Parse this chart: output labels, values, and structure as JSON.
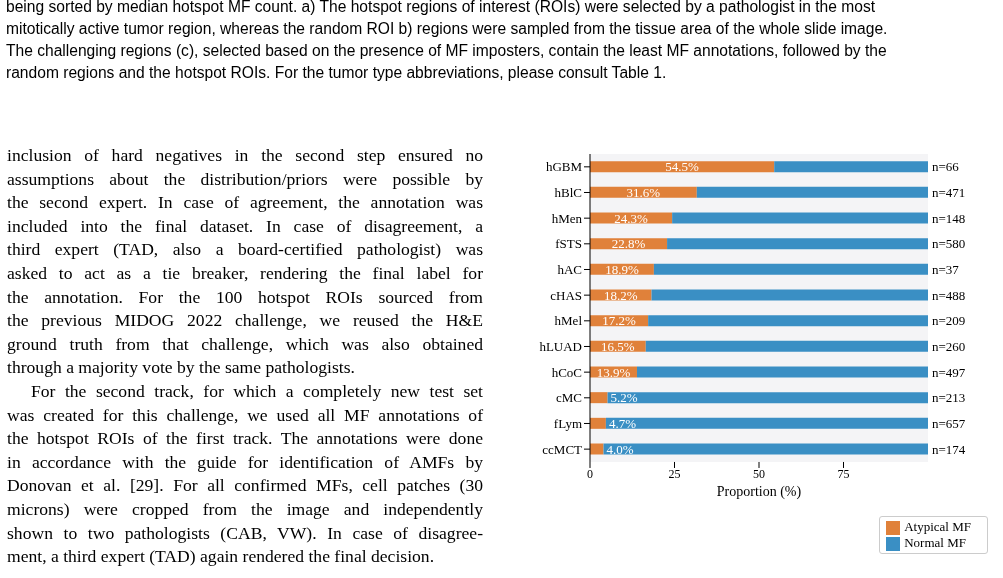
{
  "chart_data": {
    "type": "bar",
    "orientation": "horizontal",
    "stacked": true,
    "categories": [
      "hGBM",
      "hBlC",
      "hMen",
      "fSTS",
      "hAC",
      "cHAS",
      "hMel",
      "hLUAD",
      "hCoC",
      "cMC",
      "fLym",
      "ccMCT"
    ],
    "series": [
      {
        "name": "Atypical MF",
        "color": "#e0813a",
        "values": [
          54.5,
          31.6,
          24.3,
          22.8,
          18.9,
          18.2,
          17.2,
          16.5,
          13.9,
          5.2,
          4.7,
          4.0
        ],
        "value_labels": [
          "54.5%",
          "31.6%",
          "24.3%",
          "22.8%",
          "18.9%",
          "18.2%",
          "17.2%",
          "16.5%",
          "13.9%",
          "5.2%",
          "4.7%",
          "4.0%"
        ]
      },
      {
        "name": "Normal MF",
        "color": "#3a8fc4",
        "values": [
          45.5,
          68.4,
          75.7,
          77.2,
          81.1,
          81.8,
          82.8,
          83.5,
          86.1,
          94.8,
          95.3,
          96.0
        ]
      }
    ],
    "xlim": [
      0,
      100
    ],
    "xticks": [
      0,
      25,
      50,
      75
    ],
    "xlabel": "Proportion (%)",
    "legend": "bottom right",
    "annotations": [
      "being sorted by median hotspot MF count. a) The hotspot regions of interest (ROIs) were selected by a pathologist in the most\nmitotically active tumor region, whereas the random ROI b) regions were sampled from the tissue area of the whole slide image.\nThe challenging regions (c), selected based on the presence of MF imposters, contain the least MF annotations, followed by the\nrandom regions and the hotspot ROIs. For the tumor type abbreviations, please consult Table 1.",
      "inclusion of hard negatives in the second step ensured no\nassumptions about the distribution/priors were possible by\nthe second expert. In case of agreement, the annotation was\nincluded into the final dataset. In case of disagreement, a\nthird expert (TAD, also a board-certified pathologist) was\nasked to act as a tie breaker, rendering the final label for\nthe annotation. For the 100 hotspot ROIs sourced from\nthe previous MIDOG 2022 challenge, we reused the H&E\nground truth from that challenge, which was also obtained\nthrough a majority vote by the same pathologists.\n    For the second track, for which a completely new test set\nwas created for this challenge, we used all MF annotations of\nthe hotspot ROIs of the first track. The annotations were done\nin accordance with the guide for identification of AMFs by\nDonovan et al. [29]. For all confirmed MFs, cell patches (30\nmicrons) were cropped from the image and independently\nshown to two pathologists (CAB, VW). In case of disagree-\nment, a third expert (TAD) again rendered the final decision.",
      "n=66",
      "n=471",
      "n=148",
      "n=580",
      "n=37",
      "n=488",
      "n=209",
      "n=260",
      "n=497",
      "n=213",
      "n=657",
      "n=174"
    ]
  }
}
